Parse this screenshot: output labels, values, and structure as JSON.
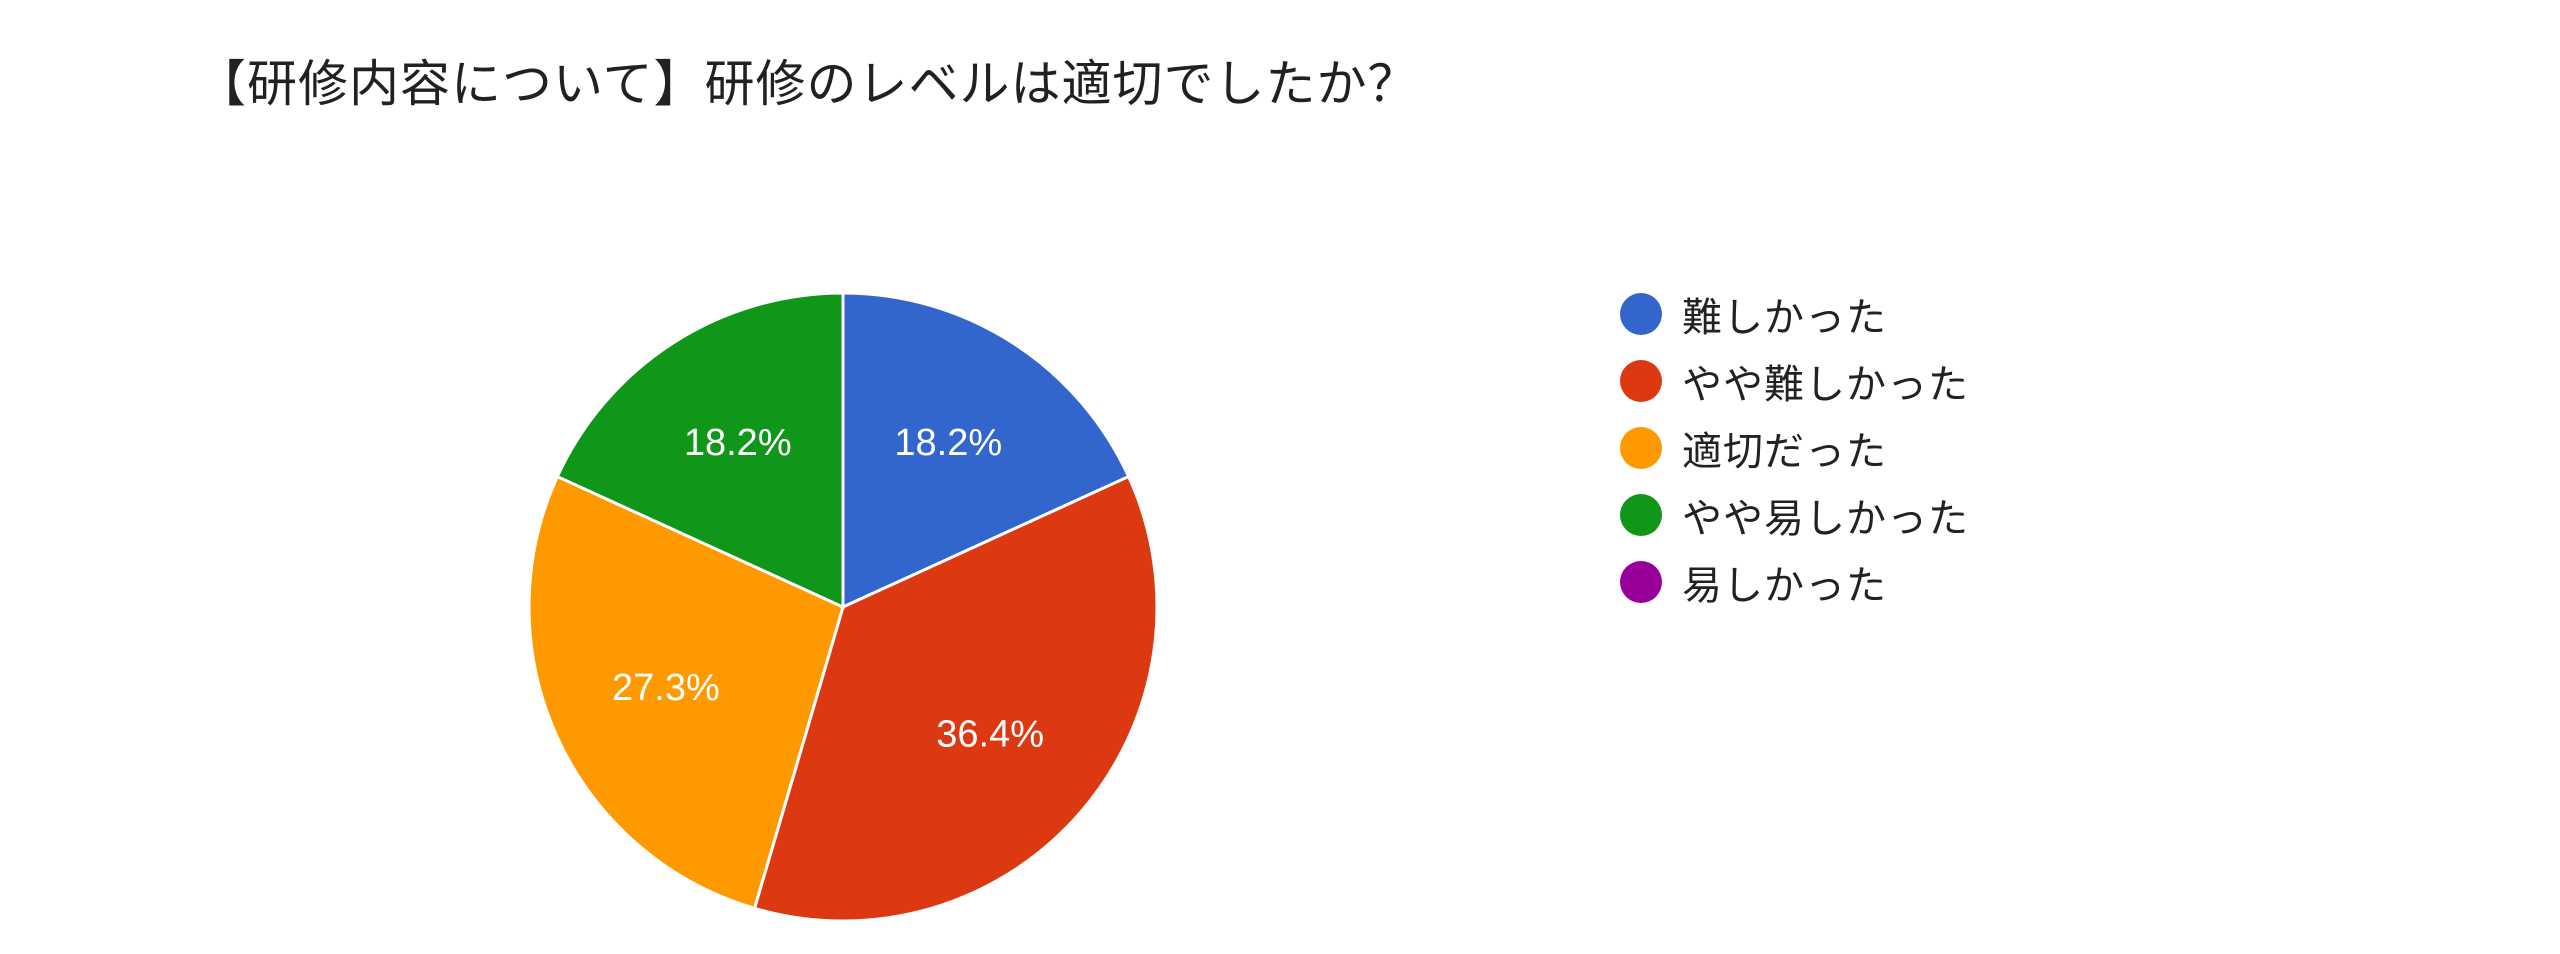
{
  "title": "【研修内容について】研修のレベルは適切でしたか？",
  "chart_data": {
    "type": "pie",
    "title": "【研修内容について】研修のレベルは適切でしたか？",
    "start_angle_deg": 90,
    "direction": "clockwise",
    "slices": [
      {
        "label": "難しかった",
        "value": 18.2,
        "display": "18.2%",
        "color": "#3366cc"
      },
      {
        "label": "やや難しかった",
        "value": 36.4,
        "display": "36.4%",
        "color": "#dc3912"
      },
      {
        "label": "適切だった",
        "value": 27.3,
        "display": "27.3%",
        "color": "#ff9900"
      },
      {
        "label": "やや易しかった",
        "value": 18.2,
        "display": "18.2%",
        "color": "#109618"
      },
      {
        "label": "易しかった",
        "value": 0,
        "display": "",
        "color": "#990099"
      }
    ],
    "legend": {
      "position": "right"
    }
  }
}
